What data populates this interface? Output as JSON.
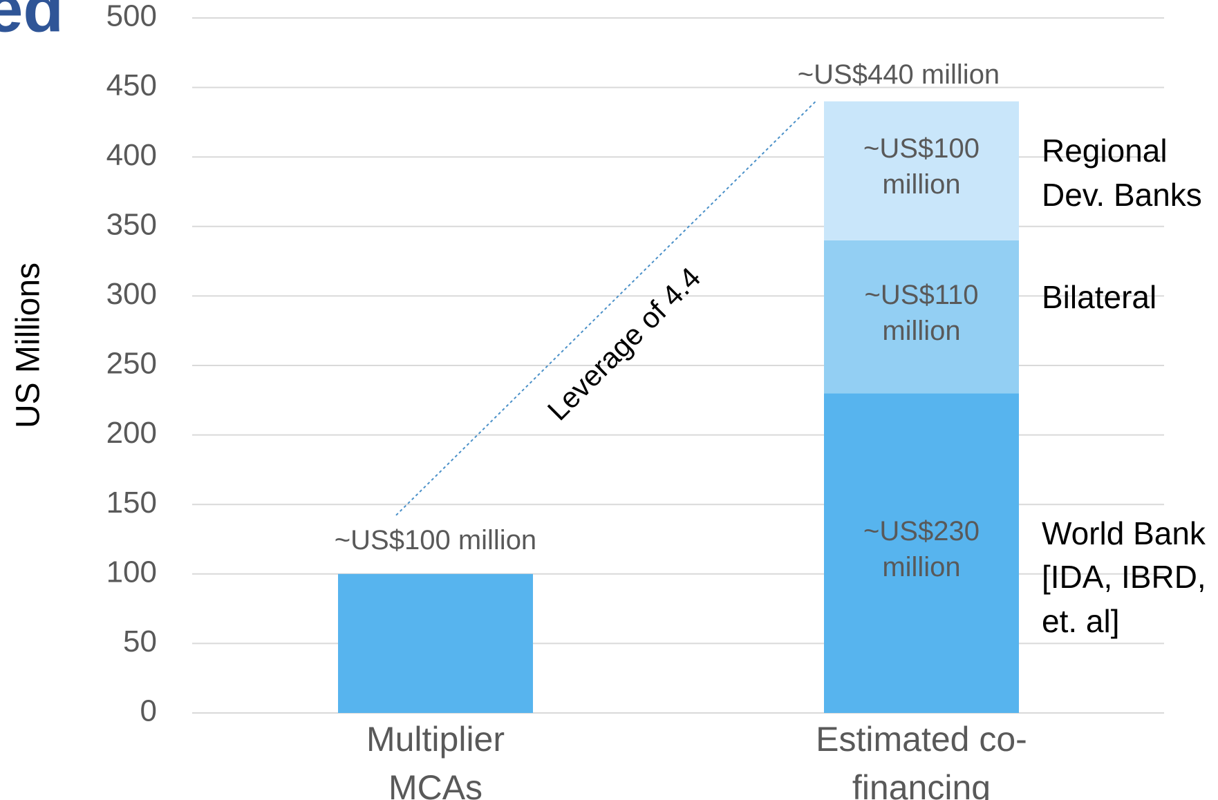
{
  "chart_data": {
    "type": "stacked_bar",
    "slide_title_fragment": "ed",
    "y_label": "US Millions",
    "categories": [
      "Multiplier MCAs",
      "Estimated co-financing"
    ],
    "series": [
      {
        "color": "#57b4ee",
        "values": [
          100,
          null
        ],
        "value_labels": [
          "~US$100 million",
          null
        ]
      },
      {
        "name": "World Bank [IDA, IBRD, et. al]",
        "color": "#57b4ee",
        "values": [
          null,
          230
        ],
        "value_labels": [
          null,
          "~US$230 million"
        ]
      },
      {
        "name": "Bilateral",
        "color": "#93cff3",
        "values": [
          null,
          110
        ],
        "value_labels": [
          null,
          "~US$110 million"
        ]
      },
      {
        "name": "Regional Dev. Banks",
        "color": "#c9e6fa",
        "values": [
          null,
          100
        ],
        "value_labels": [
          null,
          "~US$100 million"
        ]
      }
    ],
    "total": {
      "value": 440,
      "label": "~US$440 million"
    },
    "annotation": "Leverage of 4.4",
    "ylim": [
      0,
      500
    ],
    "yticks": [
      0,
      50,
      100,
      150,
      200,
      250,
      300,
      350,
      400,
      450,
      500
    ],
    "grid": true
  }
}
